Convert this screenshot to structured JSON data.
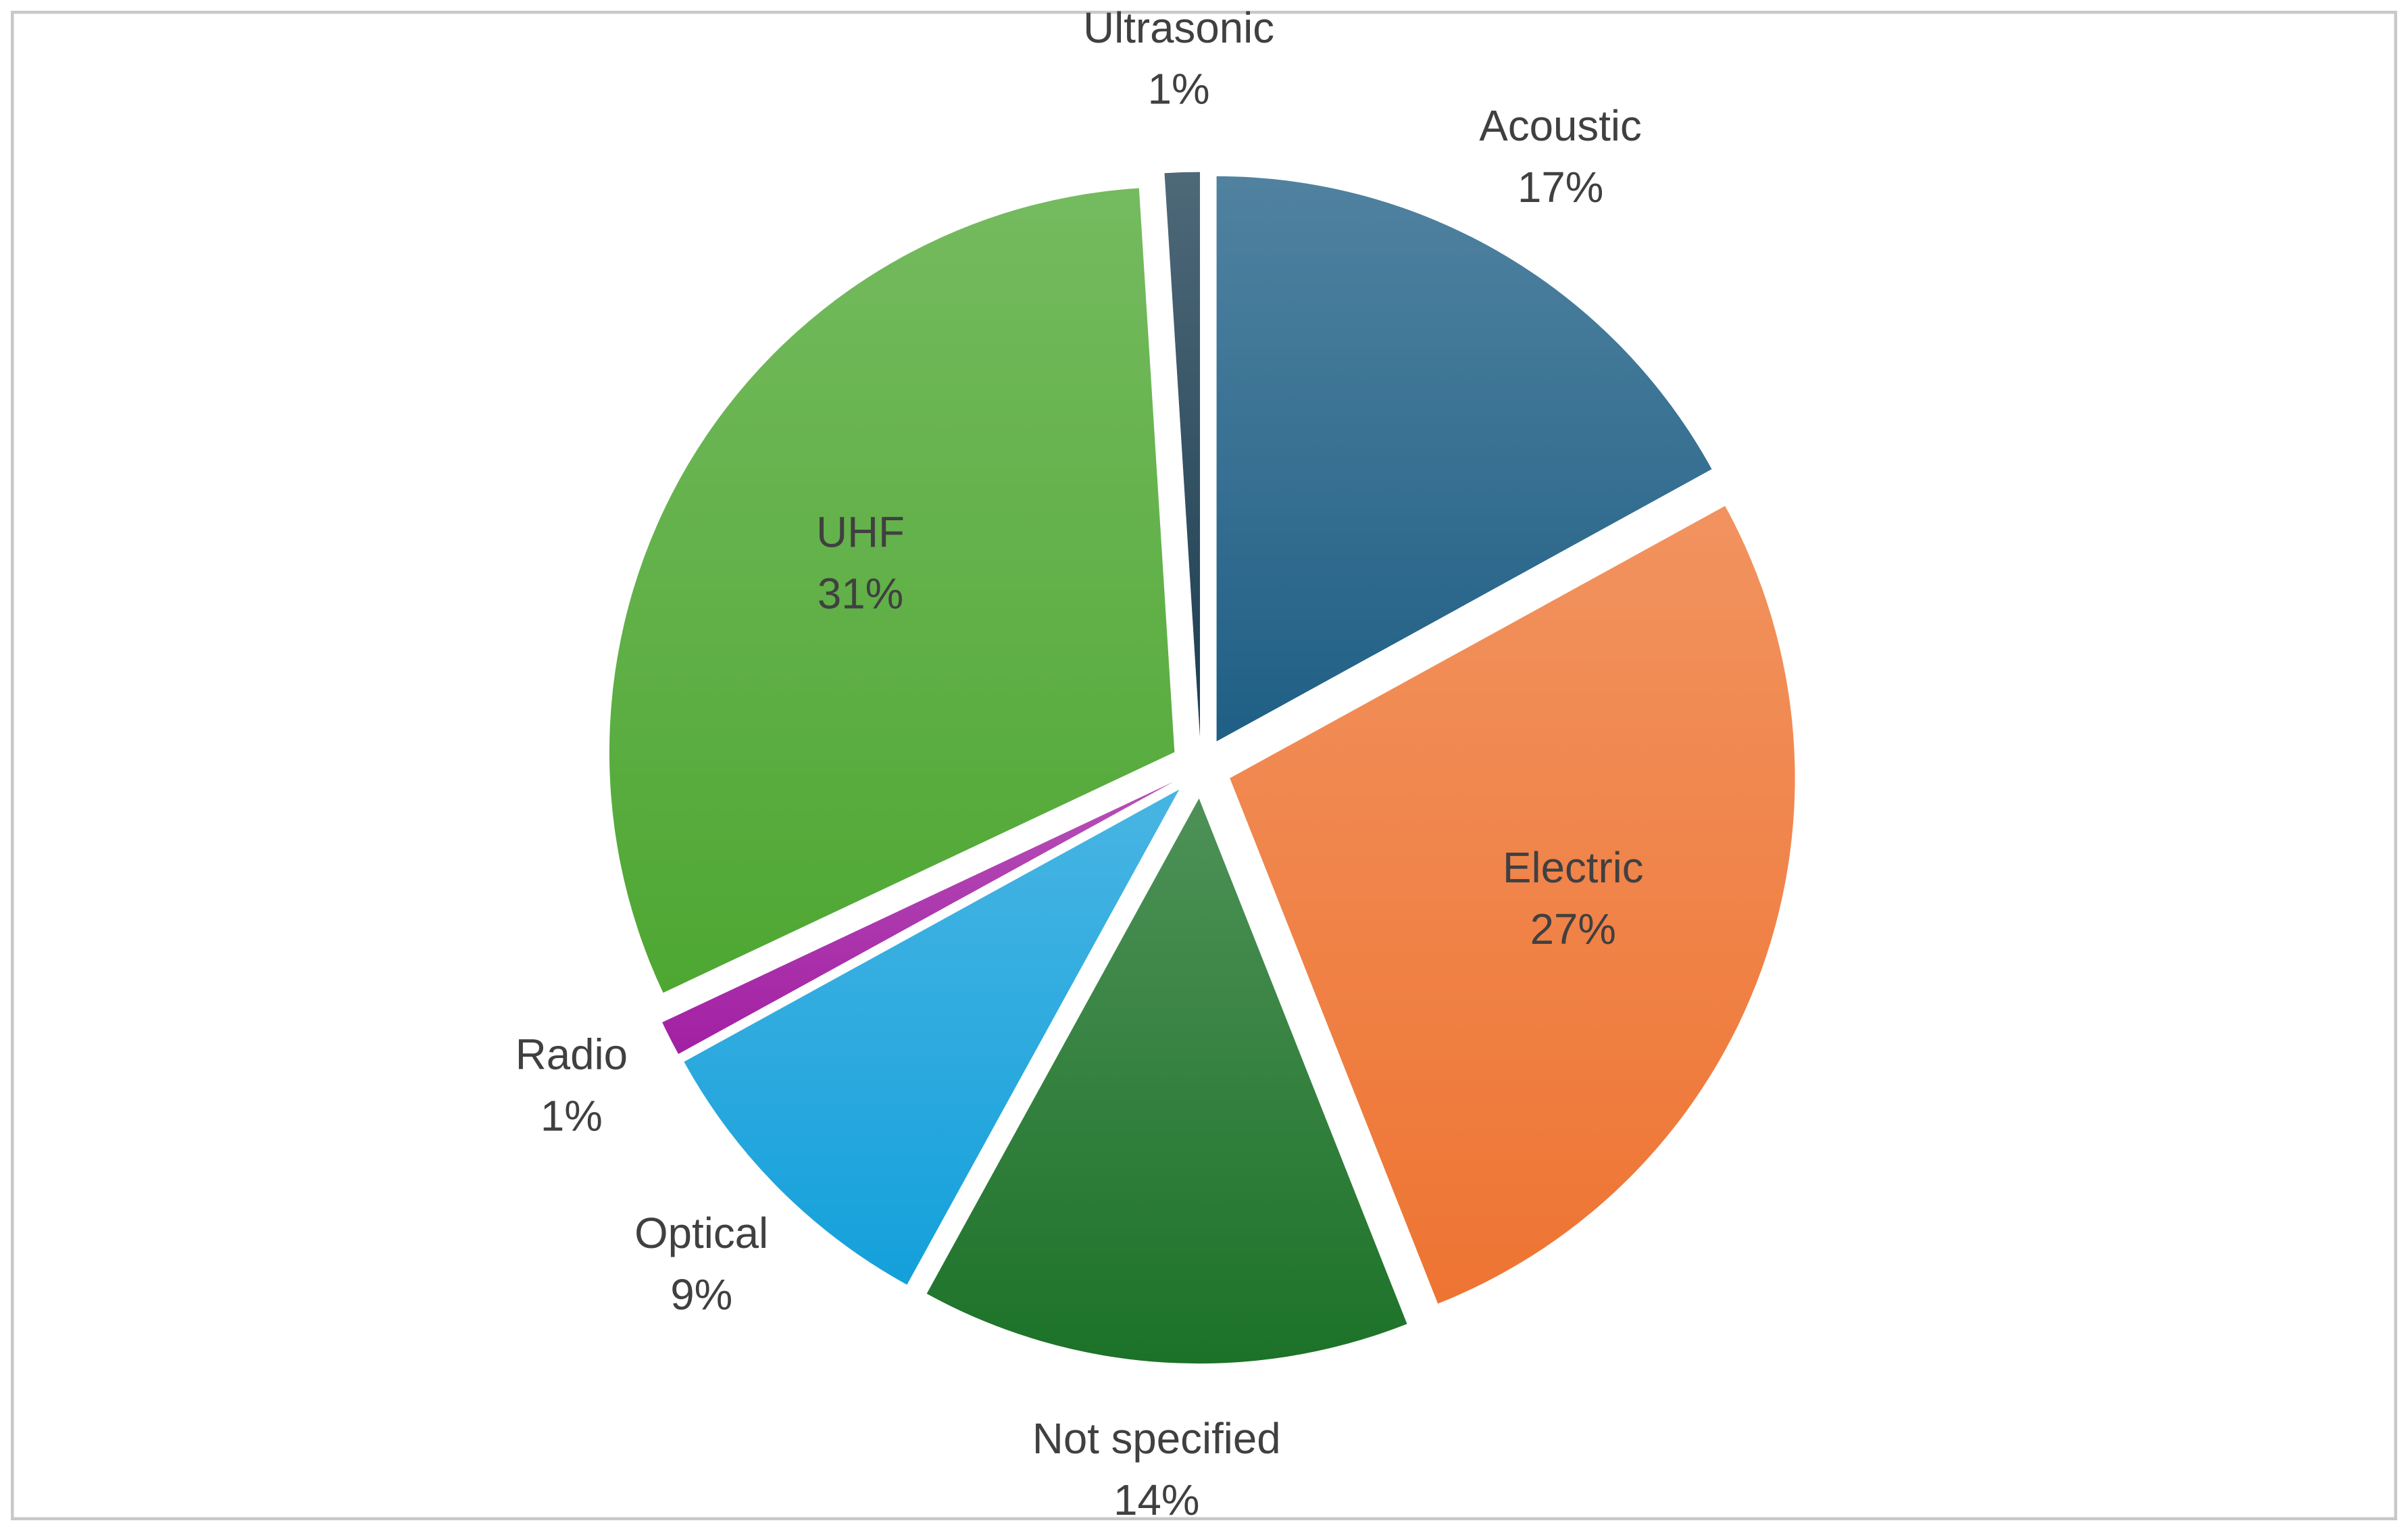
{
  "chart_data": {
    "type": "pie",
    "categories": [
      "Acoustic",
      "Electric",
      "Not specified",
      "Optical",
      "Radio",
      "UHF",
      "Ultrasonic"
    ],
    "values": [
      17,
      27,
      14,
      9,
      1,
      31,
      1
    ],
    "value_labels": [
      "17%",
      "27%",
      "14%",
      "9%",
      "1%",
      "31%",
      "1%"
    ],
    "colors": [
      "#1f5f85",
      "#ee7432",
      "#1c7228",
      "#14a0db",
      "#a21fa3",
      "#4ea732",
      "#1c3e52"
    ]
  }
}
